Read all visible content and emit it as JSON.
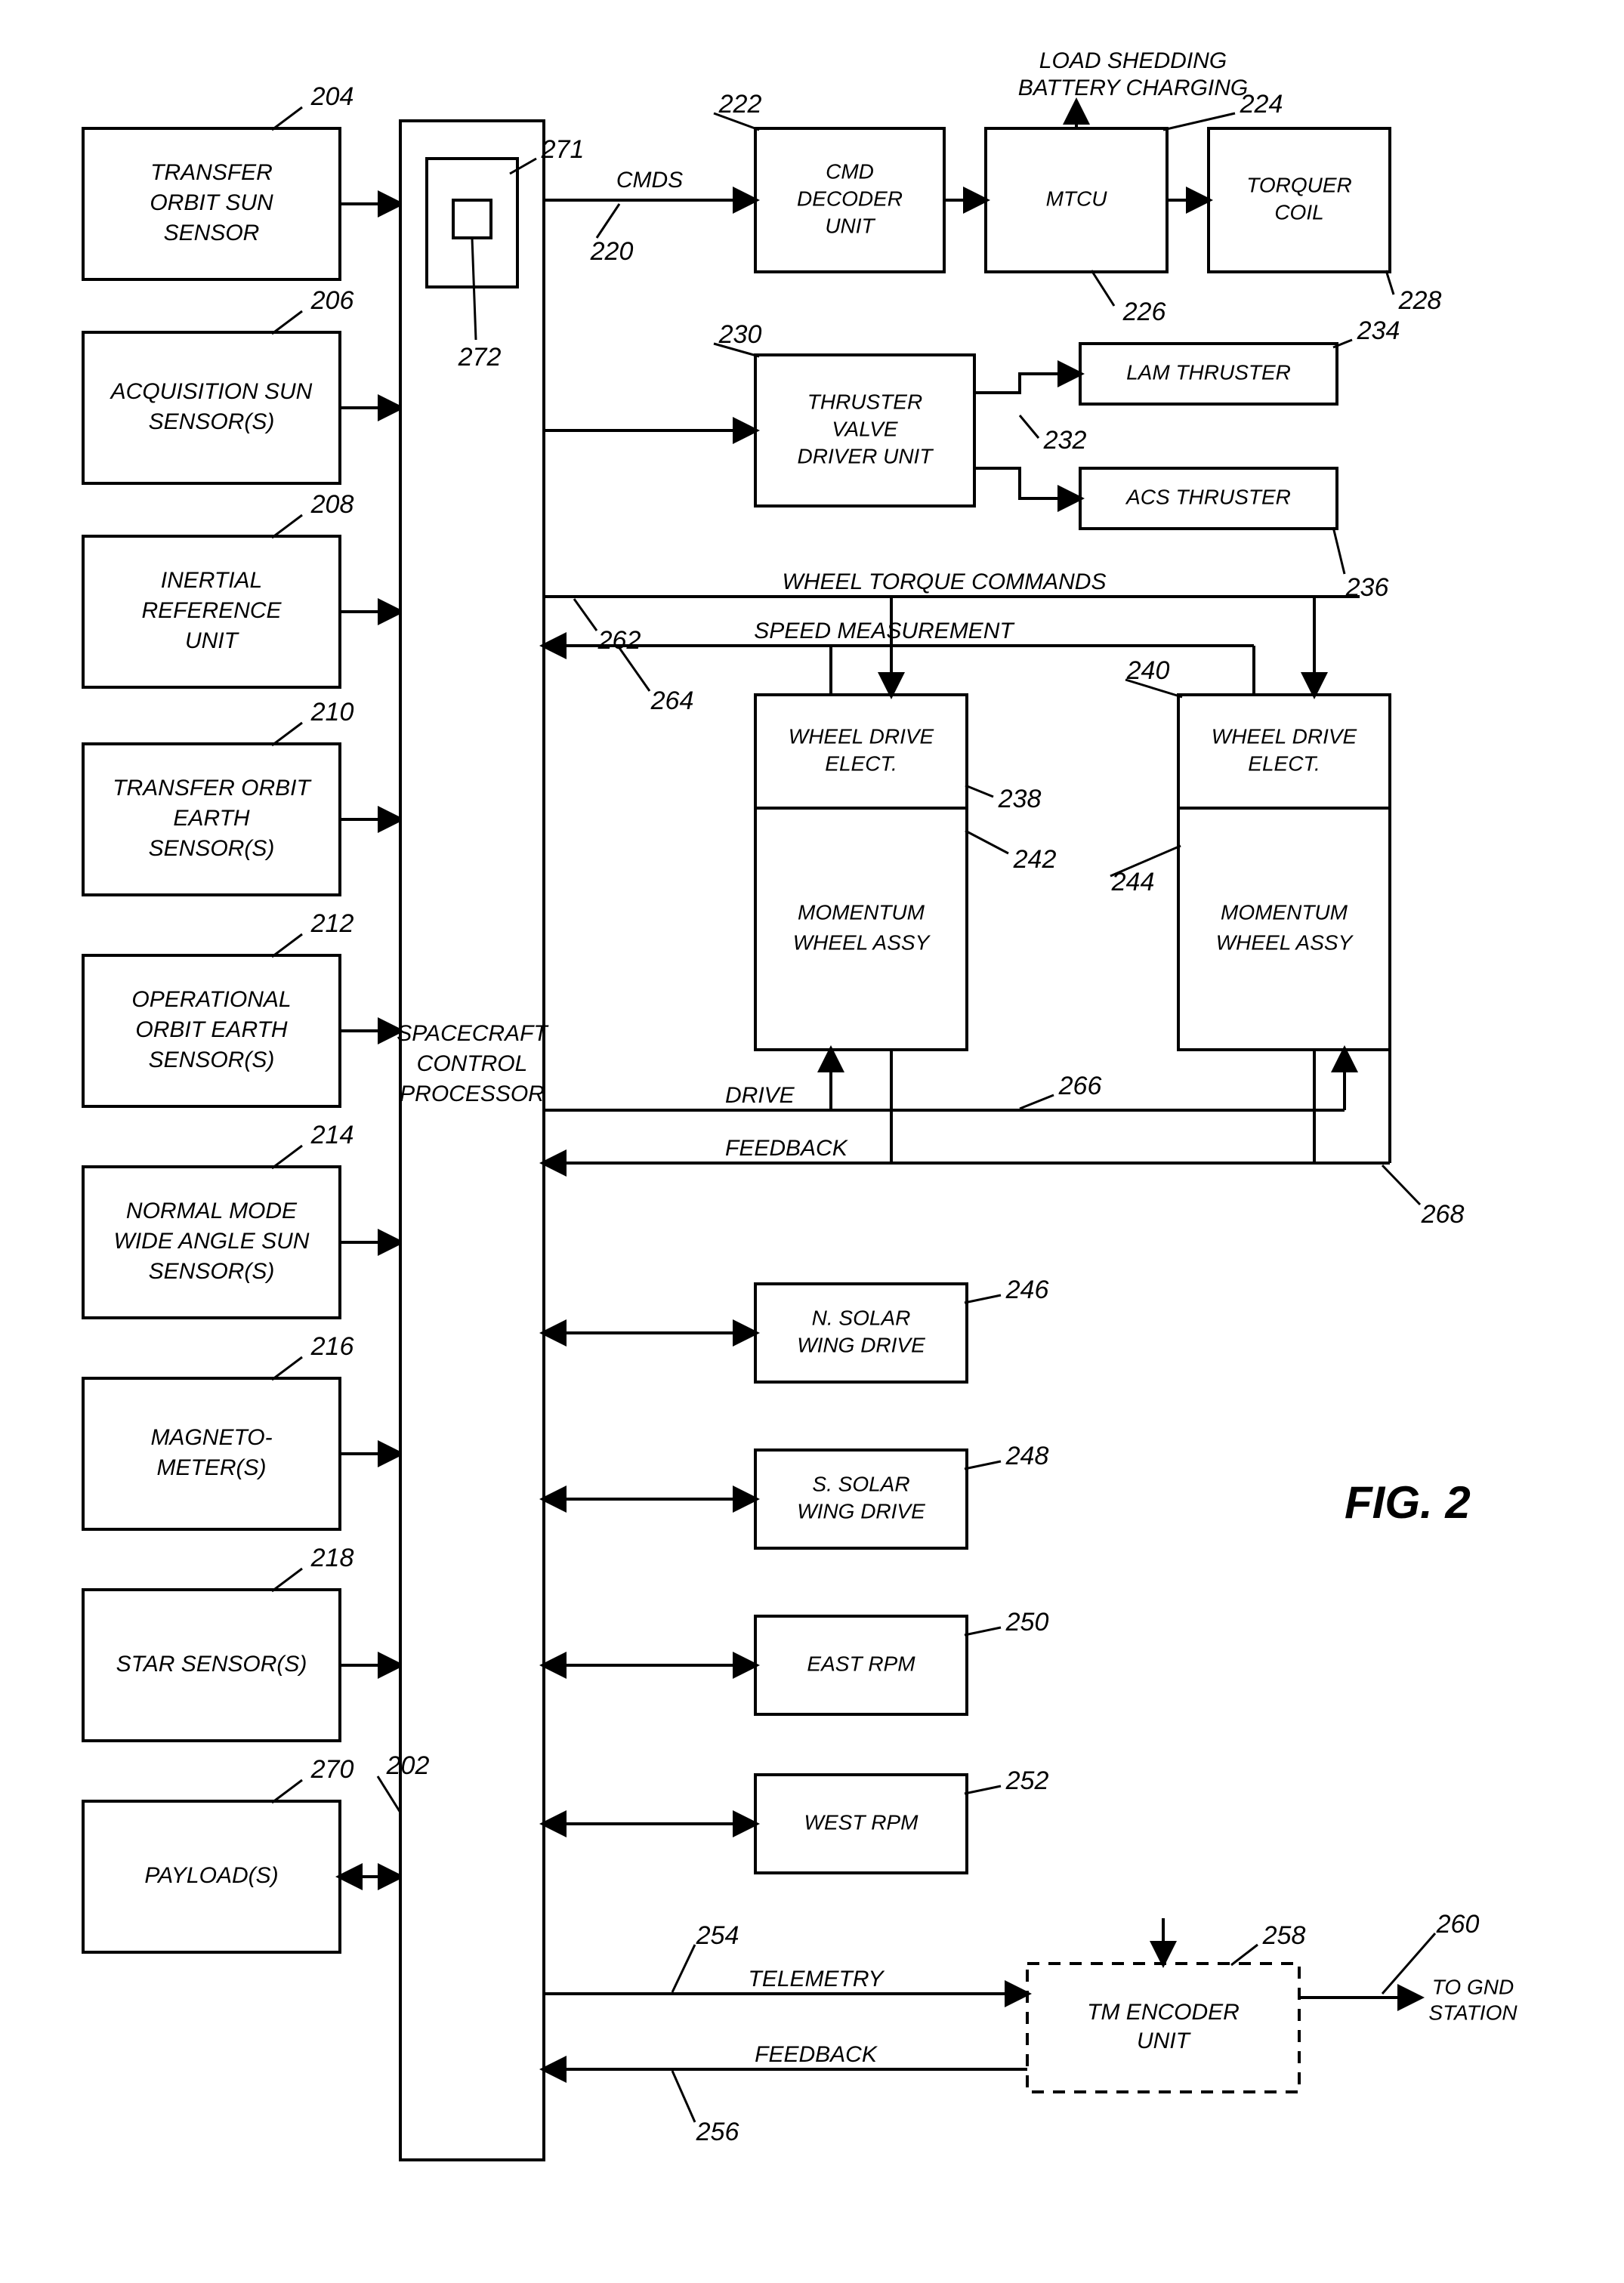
{
  "figure_label": "FIG. 2",
  "sensors": [
    {
      "label_lines": [
        "TRANSFER",
        "ORBIT SUN",
        "SENSOR"
      ],
      "ref": "204"
    },
    {
      "label_lines": [
        "ACQUISITION SUN",
        "SENSOR(S)"
      ],
      "ref": "206"
    },
    {
      "label_lines": [
        "INERTIAL",
        "REFERENCE",
        "UNIT"
      ],
      "ref": "208"
    },
    {
      "label_lines": [
        "TRANSFER ORBIT",
        "EARTH",
        "SENSOR(S)"
      ],
      "ref": "210"
    },
    {
      "label_lines": [
        "OPERATIONAL",
        "ORBIT EARTH",
        "SENSOR(S)"
      ],
      "ref": "212"
    },
    {
      "label_lines": [
        "NORMAL MODE",
        "WIDE ANGLE SUN",
        "SENSOR(S)"
      ],
      "ref": "214"
    },
    {
      "label_lines": [
        "MAGNETO-",
        "METER(S)"
      ],
      "ref": "216"
    },
    {
      "label_lines": [
        "STAR SENSOR(S)"
      ],
      "ref": "218"
    },
    {
      "label_lines": [
        "PAYLOAD(S)"
      ],
      "ref": "270"
    }
  ],
  "processor": {
    "label_lines": [
      "SPACECRAFT",
      "CONTROL",
      "PROCESSOR"
    ],
    "ref": "202"
  },
  "inner_outer": {
    "ref_outer": "271",
    "ref_inner": "272"
  },
  "top_header": "LOAD SHEDDING\nBATTERY CHARGING",
  "top_row": [
    {
      "label_lines": [
        "CMD",
        "DECODER",
        "UNIT"
      ],
      "ref": "222"
    },
    {
      "label_lines": [
        "MTCU"
      ],
      "ref": "224"
    },
    {
      "label_lines": [
        "TORQUER",
        "COIL"
      ],
      "ref": "228"
    }
  ],
  "cmds_label": "CMDS",
  "cmds_ref": "220",
  "ref_226": "226",
  "thruster_unit": {
    "label_lines": [
      "THRUSTER",
      "VALVE",
      "DRIVER UNIT"
    ],
    "ref": "230"
  },
  "ref_232": "232",
  "lam": {
    "label": "LAM THRUSTER",
    "ref": "234"
  },
  "acs": {
    "label": "ACS THRUSTER",
    "ref": "236"
  },
  "wheel_torque": "WHEEL TORQUE COMMANDS",
  "wheel_torque_ref": "262",
  "speed_meas": "SPEED MEASUREMENT",
  "speed_meas_ref": "264",
  "wde": "WHEEL DRIVE ELECT.",
  "mwa": "MOMENTUM WHEEL ASSY",
  "ref_238": "238",
  "ref_240": "240",
  "ref_242": "242",
  "ref_244": "244",
  "drive": "DRIVE",
  "drive_ref": "266",
  "feedback1": "FEEDBACK",
  "feedback_ref": "268",
  "rpm_blocks": [
    {
      "label_lines": [
        "N. SOLAR",
        "WING DRIVE"
      ],
      "ref": "246"
    },
    {
      "label_lines": [
        "S. SOLAR",
        "WING DRIVE"
      ],
      "ref": "248"
    },
    {
      "label_lines": [
        "EAST RPM"
      ],
      "ref": "250"
    },
    {
      "label_lines": [
        "WEST RPM"
      ],
      "ref": "252"
    }
  ],
  "telemetry": "TELEMETRY",
  "telemetry_ref": "254",
  "feedback2": "FEEDBACK",
  "feedback2_ref": "256",
  "tm_encoder": {
    "label_lines": [
      "TM ENCODER",
      "UNIT"
    ],
    "ref": "258"
  },
  "to_gnd": [
    "TO GND",
    "STATION"
  ],
  "to_gnd_ref": "260"
}
